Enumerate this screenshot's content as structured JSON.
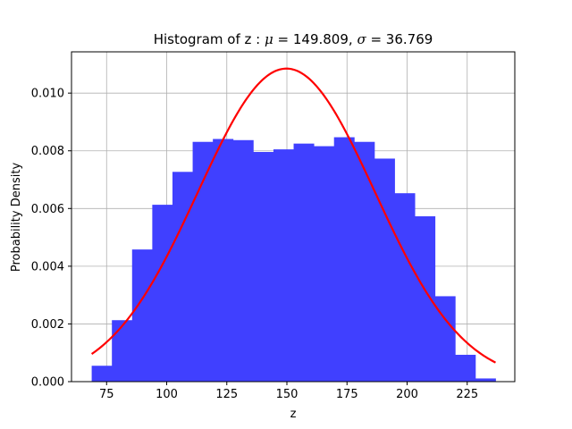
{
  "chart_data": {
    "type": "bar",
    "title": {
      "prefix": "Histogram of z :",
      "mu_symbol": "μ",
      "mu_text": " = 149.809,",
      "sigma_symbol": "σ",
      "sigma_text": " = 36.769"
    },
    "xlabel": "z",
    "ylabel": "Probability Density",
    "xlim": [
      60.4,
      244.8
    ],
    "ylim": [
      0,
      0.01143
    ],
    "xticks": [
      75,
      100,
      125,
      150,
      175,
      200,
      225
    ],
    "xtick_labels": [
      "75",
      "100",
      "125",
      "150",
      "175",
      "200",
      "225"
    ],
    "yticks": [
      0,
      0.002,
      0.004,
      0.006,
      0.008,
      0.01
    ],
    "ytick_labels": [
      "0.000",
      "0.002",
      "0.004",
      "0.006",
      "0.008",
      "0.010"
    ],
    "grid": true,
    "bins": {
      "start": 68.8,
      "width": 8.4,
      "densities": [
        0.00055,
        0.00213,
        0.00458,
        0.00613,
        0.00727,
        0.00831,
        0.00841,
        0.00837,
        0.00796,
        0.00805,
        0.00825,
        0.00816,
        0.00847,
        0.00831,
        0.00773,
        0.00653,
        0.00573,
        0.00296,
        0.00093,
        0.00011
      ]
    },
    "bar_color": "#4040ff",
    "curve": {
      "type": "normal_pdf",
      "mu": 149.809,
      "sigma": 36.769,
      "x_range": [
        68.8,
        236.8
      ],
      "color": "#ff0000"
    }
  }
}
